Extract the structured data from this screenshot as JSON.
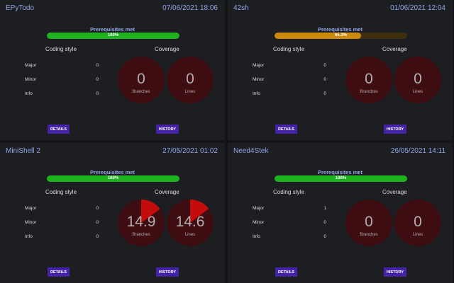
{
  "labels": {
    "prerequisites": "Prerequisites met",
    "coding_style": "Coding style",
    "coverage": "Coverage",
    "major": "Major",
    "minor": "Minor",
    "info": "Info",
    "branches": "Branches",
    "lines": "Lines",
    "details": "DETAILS",
    "history": "HISTORY"
  },
  "colors": {
    "accent_text": "#8fa6e8",
    "button": "#4423a6",
    "progress_ok": "#1fb31f",
    "progress_partial": "#cc8a0c",
    "coverage_circle": "#3d0d12",
    "coverage_fill": "#c40c0c"
  },
  "cards": [
    {
      "title": "EPyTodo",
      "date": "07/06/2021 18:06",
      "progress_text": "100%",
      "progress": 100,
      "major": "0",
      "minor": "0",
      "info": "0",
      "branches": "0",
      "branches_pct": 0,
      "lines": "0",
      "lines_pct": 0
    },
    {
      "title": "42sh",
      "date": "01/06/2021 12:04",
      "progress_text": "65.3%",
      "progress": 65.3,
      "major": "0",
      "minor": "0",
      "info": "0",
      "branches": "0",
      "branches_pct": 0,
      "lines": "0",
      "lines_pct": 0
    },
    {
      "title": "MiniShell 2",
      "date": "27/05/2021 01:02",
      "progress_text": "100%",
      "progress": 100,
      "major": "0",
      "minor": "0",
      "info": "0",
      "branches": "14.9",
      "branches_pct": 14.9,
      "lines": "14.6",
      "lines_pct": 14.6
    },
    {
      "title": "Need4Stek",
      "date": "26/05/2021 14:11",
      "progress_text": "100%",
      "progress": 100,
      "major": "1",
      "minor": "0",
      "info": "0",
      "branches": "0",
      "branches_pct": 0,
      "lines": "0",
      "lines_pct": 0
    }
  ]
}
